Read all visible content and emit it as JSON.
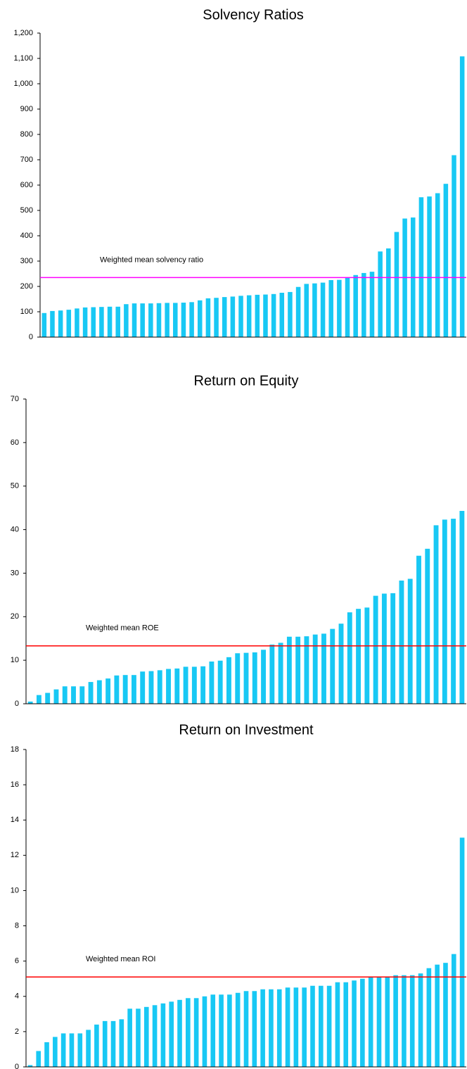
{
  "chart_data": [
    {
      "type": "bar",
      "title": "Solvency Ratios",
      "color": "#18c8f4",
      "values": [
        95,
        103,
        105,
        108,
        113,
        117,
        118,
        119,
        120,
        120,
        130,
        133,
        133,
        133,
        134,
        135,
        135,
        136,
        138,
        145,
        153,
        155,
        158,
        160,
        163,
        165,
        167,
        168,
        170,
        175,
        178,
        198,
        210,
        212,
        215,
        225,
        226,
        235,
        245,
        253,
        258,
        338,
        350,
        415,
        468,
        472,
        552,
        555,
        568,
        605,
        718,
        1108
      ],
      "ylim": [
        0,
        1200
      ],
      "yticks": [
        0,
        100,
        200,
        300,
        400,
        500,
        600,
        700,
        800,
        900,
        {
          "value": 1000,
          "label": "1,000"
        },
        {
          "value": 1100,
          "label": "1,100"
        },
        {
          "value": 1200,
          "label": "1,200"
        }
      ],
      "mean_line": {
        "label": "Weighted mean solvency ratio",
        "value": 235,
        "color": "#ff00ff"
      }
    },
    {
      "type": "bar",
      "title": "Return on Equity",
      "color": "#18c8f4",
      "values": [
        0.5,
        2,
        2.5,
        3.3,
        4,
        4,
        4,
        5,
        5.4,
        5.8,
        6.5,
        6.6,
        6.6,
        7.4,
        7.5,
        7.7,
        8,
        8.1,
        8.5,
        8.5,
        8.6,
        9.7,
        9.9,
        10.7,
        11.6,
        11.7,
        11.8,
        12.4,
        13.6,
        14,
        15.4,
        15.4,
        15.5,
        15.9,
        16.1,
        17.2,
        18.4,
        21,
        21.8,
        22.1,
        24.8,
        25.3,
        25.4,
        28.3,
        28.7,
        34,
        35.6,
        41,
        42.3,
        42.5,
        44.3
      ],
      "ylim": [
        0,
        70
      ],
      "yticks": [
        0,
        10,
        20,
        30,
        40,
        50,
        60,
        70
      ],
      "mean_line": {
        "label": "Weighted mean ROE",
        "value": 13.3,
        "color": "#ff0000"
      }
    },
    {
      "type": "bar",
      "title": "Return on Investment",
      "color": "#18c8f4",
      "values": [
        0.1,
        0.9,
        1.4,
        1.7,
        1.9,
        1.9,
        1.9,
        2.1,
        2.4,
        2.6,
        2.6,
        2.7,
        3.3,
        3.3,
        3.4,
        3.5,
        3.6,
        3.7,
        3.8,
        3.9,
        3.9,
        4.0,
        4.1,
        4.1,
        4.1,
        4.2,
        4.3,
        4.3,
        4.4,
        4.4,
        4.4,
        4.5,
        4.5,
        4.5,
        4.6,
        4.6,
        4.6,
        4.8,
        4.8,
        4.9,
        5.0,
        5.1,
        5.1,
        5.1,
        5.2,
        5.2,
        5.2,
        5.3,
        5.6,
        5.8,
        5.9,
        6.4,
        13.0
      ],
      "ylim": [
        0,
        18
      ],
      "yticks": [
        0,
        2,
        4,
        6,
        8,
        10,
        12,
        14,
        16,
        18
      ],
      "mean_line": {
        "label": "Weighted mean ROI",
        "value": 5.1,
        "color": "#ff0000"
      }
    }
  ]
}
